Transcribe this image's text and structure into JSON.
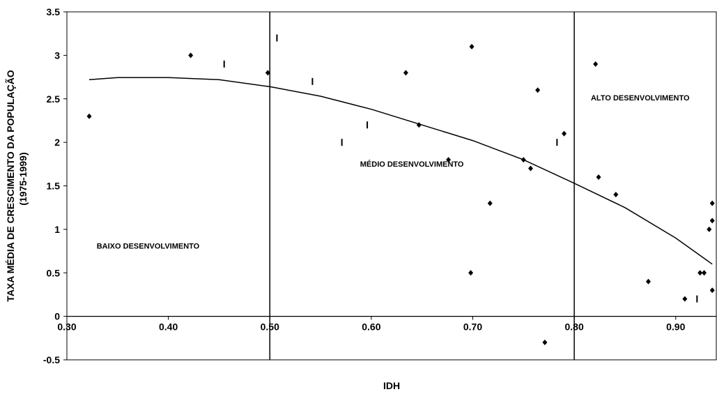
{
  "chart_data": {
    "type": "scatter",
    "xlabel": "IDH",
    "ylabel_lines": [
      "TAXA MÉDIA DE CRESCIMENTO DA POPULAÇÃO",
      "(1975-1999)"
    ],
    "xlim": [
      0.3,
      0.94
    ],
    "ylim": [
      -0.5,
      3.5
    ],
    "x_ticks": [
      0.3,
      0.4,
      0.5,
      0.6,
      0.7,
      0.8,
      0.9
    ],
    "x_tick_labels": [
      "0.30",
      "0.40",
      "0.50",
      "0.60",
      "0.70",
      "0.80",
      "0.90"
    ],
    "y_ticks": [
      -0.5,
      0,
      0.5,
      1,
      1.5,
      2,
      2.5,
      3,
      3.5
    ],
    "y_tick_labels": [
      "-0.5",
      "0",
      "0.5",
      "1",
      "1.5",
      "2",
      "2.5",
      "3",
      "3.5"
    ],
    "grid": false,
    "vertical_lines": [
      0.5,
      0.8
    ],
    "regions": [
      {
        "label": "BAIXO DESENVOLVIMENTO",
        "x": 0.38,
        "y": 0.78
      },
      {
        "label": "MÉDIO DESENVOLVIMENTO",
        "x": 0.64,
        "y": 1.72
      },
      {
        "label": "ALTO DESENVOLVIMENTO",
        "x": 0.865,
        "y": 2.48
      }
    ],
    "series": [
      {
        "marker": "diamond",
        "points": [
          [
            0.322,
            2.3
          ],
          [
            0.422,
            3.0
          ],
          [
            0.498,
            2.8
          ],
          [
            0.634,
            2.8
          ],
          [
            0.647,
            2.2
          ],
          [
            0.676,
            1.8
          ],
          [
            0.698,
            0.5
          ],
          [
            0.699,
            3.1
          ],
          [
            0.717,
            1.3
          ],
          [
            0.75,
            1.8
          ],
          [
            0.757,
            1.7
          ],
          [
            0.764,
            2.6
          ],
          [
            0.771,
            -0.3
          ],
          [
            0.79,
            2.1
          ],
          [
            0.821,
            2.9
          ],
          [
            0.824,
            1.6
          ],
          [
            0.841,
            1.4
          ],
          [
            0.873,
            0.4
          ],
          [
            0.909,
            0.2
          ],
          [
            0.924,
            0.5
          ],
          [
            0.928,
            0.5
          ],
          [
            0.933,
            1.0
          ],
          [
            0.936,
            1.3
          ],
          [
            0.936,
            1.1
          ],
          [
            0.936,
            0.3
          ]
        ]
      },
      {
        "marker": "dash",
        "points": [
          [
            0.455,
            2.9
          ],
          [
            0.507,
            3.2
          ],
          [
            0.542,
            2.7
          ],
          [
            0.571,
            2.0
          ],
          [
            0.596,
            2.2
          ],
          [
            0.783,
            2.0
          ],
          [
            0.921,
            0.2
          ]
        ]
      }
    ],
    "trendline": {
      "type": "polynomial",
      "points": [
        [
          0.322,
          2.72
        ],
        [
          0.35,
          2.745
        ],
        [
          0.4,
          2.745
        ],
        [
          0.45,
          2.72
        ],
        [
          0.5,
          2.64
        ],
        [
          0.55,
          2.53
        ],
        [
          0.6,
          2.38
        ],
        [
          0.65,
          2.2
        ],
        [
          0.7,
          2.02
        ],
        [
          0.75,
          1.8
        ],
        [
          0.8,
          1.53
        ],
        [
          0.85,
          1.25
        ],
        [
          0.9,
          0.9
        ],
        [
          0.936,
          0.6
        ]
      ]
    }
  }
}
